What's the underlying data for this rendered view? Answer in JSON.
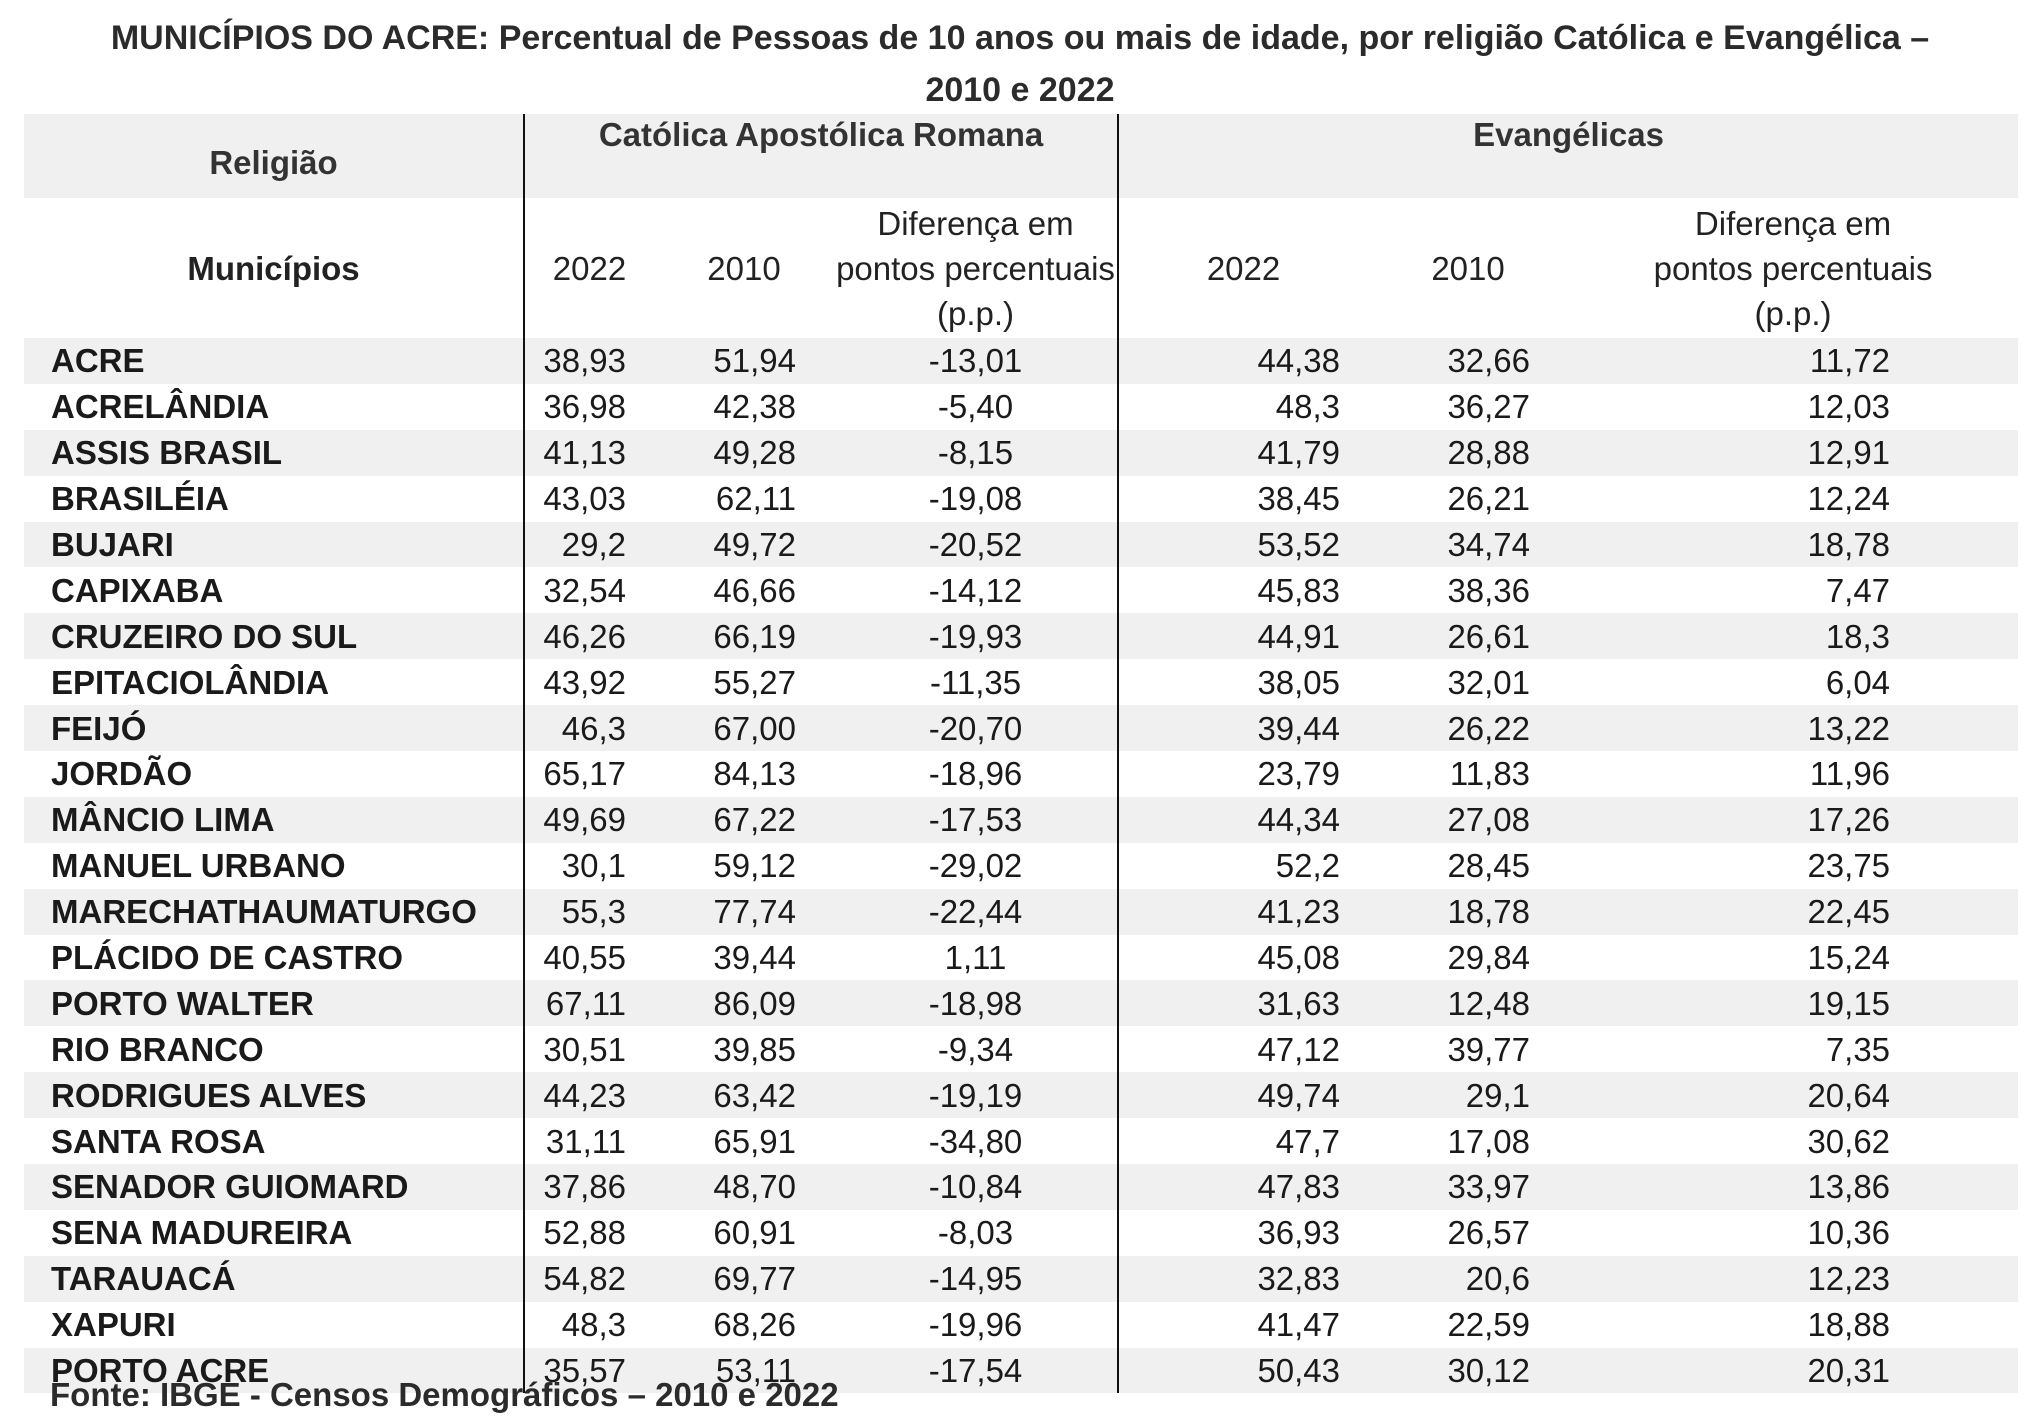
{
  "title_line1": "MUNICÍPIOS DO ACRE: Percentual de Pessoas de 10 anos ou mais de idade, por religião Católica e Evangélica –",
  "title_line2": "2010 e 2022",
  "header": {
    "religiao": "Religião",
    "municipios": "Municípios",
    "catolica": "Católica Apostólica Romana",
    "evangelicas": "Evangélicas",
    "y2022": "2022",
    "y2010": "2010",
    "diff_line1": "Diferença em",
    "diff_line2": "pontos percentuais",
    "diff_line3": "(p.p.)"
  },
  "rows": [
    {
      "name": "ACRE",
      "c2022": "38,93",
      "c2010": "51,94",
      "cdiff": "-13,01",
      "e2022": "44,38",
      "e2010": "32,66",
      "ediff": "11,72"
    },
    {
      "name": "ACRELÂNDIA",
      "c2022": "36,98",
      "c2010": "42,38",
      "cdiff": "-5,40",
      "e2022": "48,3",
      "e2010": "36,27",
      "ediff": "12,03"
    },
    {
      "name": "ASSIS BRASIL",
      "c2022": "41,13",
      "c2010": "49,28",
      "cdiff": "-8,15",
      "e2022": "41,79",
      "e2010": "28,88",
      "ediff": "12,91"
    },
    {
      "name": "BRASILÉIA",
      "c2022": "43,03",
      "c2010": "62,11",
      "cdiff": "-19,08",
      "e2022": "38,45",
      "e2010": "26,21",
      "ediff": "12,24"
    },
    {
      "name": "BUJARI",
      "c2022": "29,2",
      "c2010": "49,72",
      "cdiff": "-20,52",
      "e2022": "53,52",
      "e2010": "34,74",
      "ediff": "18,78"
    },
    {
      "name": "CAPIXABA",
      "c2022": "32,54",
      "c2010": "46,66",
      "cdiff": "-14,12",
      "e2022": "45,83",
      "e2010": "38,36",
      "ediff": "7,47"
    },
    {
      "name": "CRUZEIRO DO SUL",
      "c2022": "46,26",
      "c2010": "66,19",
      "cdiff": "-19,93",
      "e2022": "44,91",
      "e2010": "26,61",
      "ediff": "18,3"
    },
    {
      "name": "EPITACIOLÂNDIA",
      "c2022": "43,92",
      "c2010": "55,27",
      "cdiff": "-11,35",
      "e2022": "38,05",
      "e2010": "32,01",
      "ediff": "6,04"
    },
    {
      "name": "FEIJÓ",
      "c2022": "46,3",
      "c2010": "67,00",
      "cdiff": "-20,70",
      "e2022": "39,44",
      "e2010": "26,22",
      "ediff": "13,22"
    },
    {
      "name": "JORDÃO",
      "c2022": "65,17",
      "c2010": "84,13",
      "cdiff": "-18,96",
      "e2022": "23,79",
      "e2010": "11,83",
      "ediff": "11,96"
    },
    {
      "name": "MÂNCIO LIMA",
      "c2022": "49,69",
      "c2010": "67,22",
      "cdiff": "-17,53",
      "e2022": "44,34",
      "e2010": "27,08",
      "ediff": "17,26"
    },
    {
      "name": "MANUEL URBANO",
      "c2022": "30,1",
      "c2010": "59,12",
      "cdiff": "-29,02",
      "e2022": "52,2",
      "e2010": "28,45",
      "ediff": "23,75"
    },
    {
      "name": "MARECHATHAUMATURGO",
      "c2022": "55,3",
      "c2010": "77,74",
      "cdiff": "-22,44",
      "e2022": "41,23",
      "e2010": "18,78",
      "ediff": "22,45"
    },
    {
      "name": "PLÁCIDO DE CASTRO",
      "c2022": "40,55",
      "c2010": "39,44",
      "cdiff": "1,11",
      "e2022": "45,08",
      "e2010": "29,84",
      "ediff": "15,24"
    },
    {
      "name": "PORTO WALTER",
      "c2022": "67,11",
      "c2010": "86,09",
      "cdiff": "-18,98",
      "e2022": "31,63",
      "e2010": "12,48",
      "ediff": "19,15"
    },
    {
      "name": "RIO BRANCO",
      "c2022": "30,51",
      "c2010": "39,85",
      "cdiff": "-9,34",
      "e2022": "47,12",
      "e2010": "39,77",
      "ediff": "7,35"
    },
    {
      "name": "RODRIGUES ALVES",
      "c2022": "44,23",
      "c2010": "63,42",
      "cdiff": "-19,19",
      "e2022": "49,74",
      "e2010": "29,1",
      "ediff": "20,64"
    },
    {
      "name": "SANTA ROSA",
      "c2022": "31,11",
      "c2010": "65,91",
      "cdiff": "-34,80",
      "e2022": "47,7",
      "e2010": "17,08",
      "ediff": "30,62"
    },
    {
      "name": "SENADOR GUIOMARD",
      "c2022": "37,86",
      "c2010": "48,70",
      "cdiff": "-10,84",
      "e2022": "47,83",
      "e2010": "33,97",
      "ediff": "13,86"
    },
    {
      "name": "SENA MADUREIRA",
      "c2022": "52,88",
      "c2010": "60,91",
      "cdiff": "-8,03",
      "e2022": "36,93",
      "e2010": "26,57",
      "ediff": "10,36"
    },
    {
      "name": "TARAUACÁ",
      "c2022": "54,82",
      "c2010": "69,77",
      "cdiff": "-14,95",
      "e2022": "32,83",
      "e2010": "20,6",
      "ediff": "12,23"
    },
    {
      "name": "XAPURI",
      "c2022": "48,3",
      "c2010": "68,26",
      "cdiff": "-19,96",
      "e2022": "41,47",
      "e2010": "22,59",
      "ediff": "18,88"
    },
    {
      "name": "PORTO ACRE",
      "c2022": "35,57",
      "c2010": "53,11",
      "cdiff": "-17,54",
      "e2022": "50,43",
      "e2010": "30,12",
      "ediff": "20,31"
    }
  ],
  "footer": "Fonte: IBGE - Censos Demográficos – 2010 e 2022"
}
